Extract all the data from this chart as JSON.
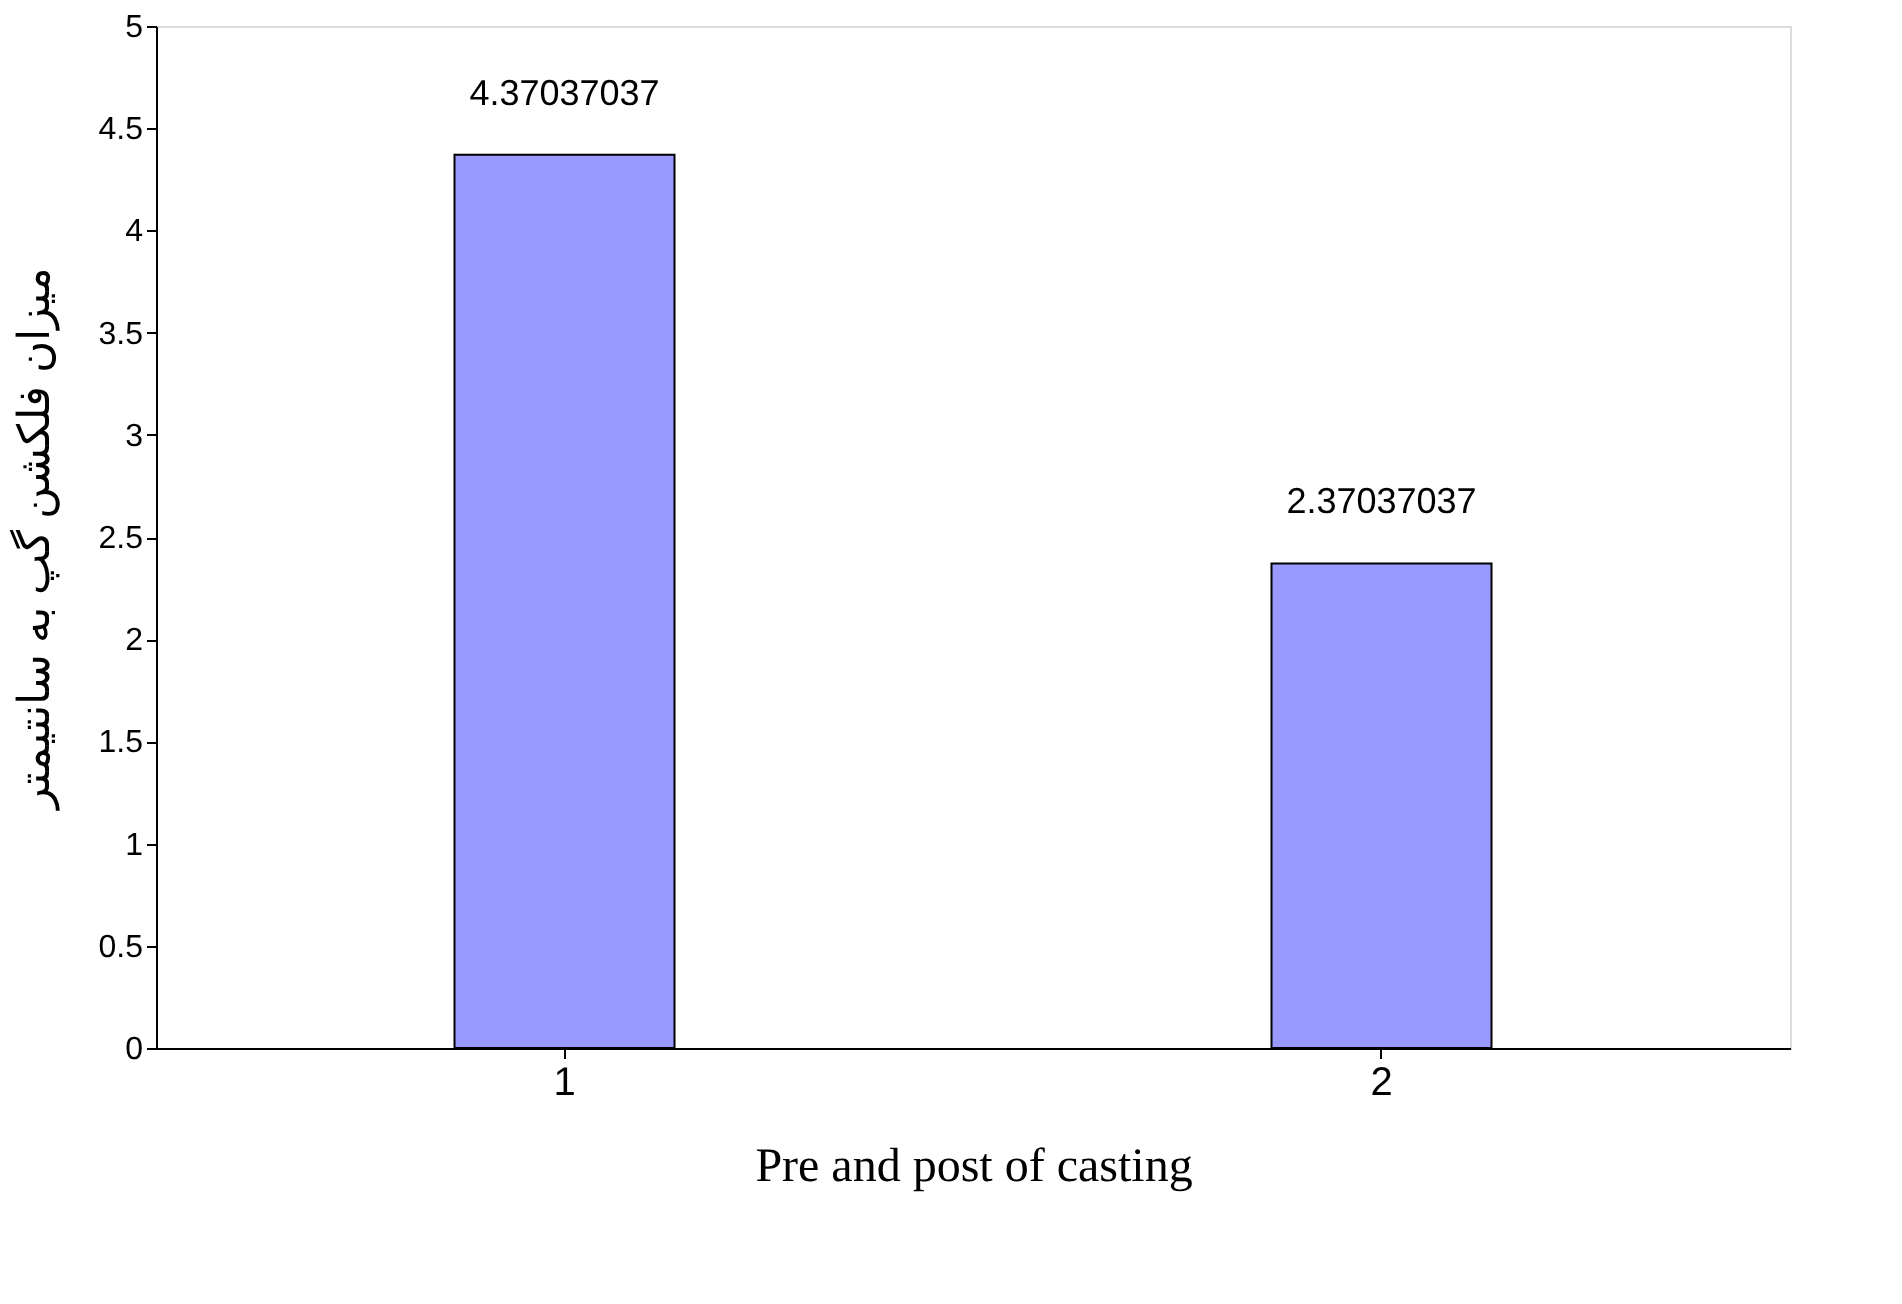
{
  "chart_data": {
    "type": "bar",
    "xlabel": "Pre and post of casting",
    "ylabel": "ميزان فلكشن گپ به سانتيمتر",
    "categories": [
      "1",
      "2"
    ],
    "values": [
      4.37037037,
      2.37037037
    ],
    "color": "#9999ff",
    "ylim": [
      0,
      5
    ],
    "yticks": [
      0,
      0.5,
      1,
      1.5,
      2,
      2.5,
      3,
      3.5,
      4,
      4.5,
      5
    ],
    "data_labels": true,
    "grid": false
  }
}
